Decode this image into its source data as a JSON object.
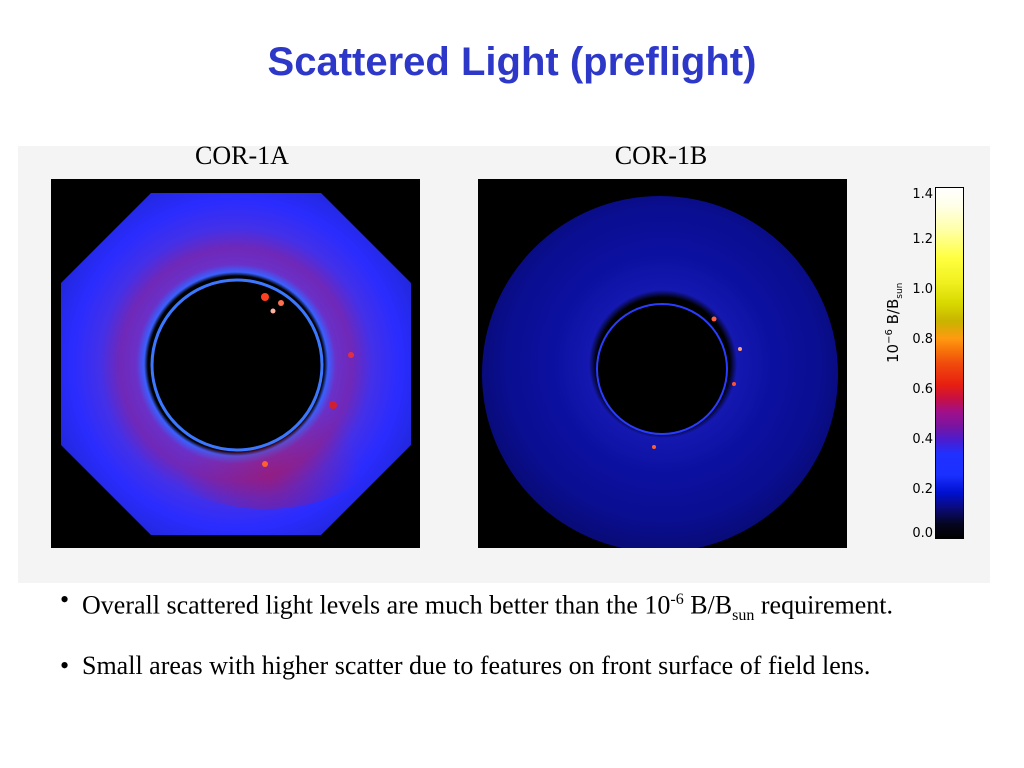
{
  "slide": {
    "title": "Scattered Light (preflight)"
  },
  "figure": {
    "left_label": "COR-1A",
    "right_label": "COR-1B",
    "colorbar": {
      "ticks": [
        "1.4",
        "1.2",
        "1.0",
        "0.8",
        "0.6",
        "0.4",
        "0.2",
        "0.0"
      ],
      "title_base": "10",
      "title_exp": "−6",
      "title_rest": " B/B",
      "title_sub": "sun"
    }
  },
  "bullets": {
    "b1_text": "Overall scattered light levels are much better than the 10",
    "b1_exp": "-6",
    "b1_mid": " B/B",
    "b1_sub": "sun",
    "b1_tail": " requirement.",
    "b2_text": "Small areas with higher scatter due to features on front surface of field lens."
  },
  "colors": {
    "title": "#2e38c8"
  }
}
